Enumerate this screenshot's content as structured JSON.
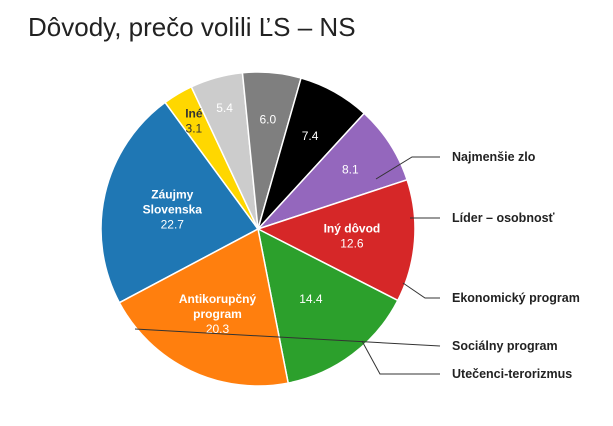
{
  "chart_data": {
    "type": "pie",
    "title": "Dôvody, prečo volili ĽS – NS",
    "slices": [
      {
        "label": "Záujmy Slovenska",
        "display_lines": [
          "Záujmy",
          "Slovenska"
        ],
        "value": 22.7,
        "value_text": "22.7",
        "color": "#1f77b4",
        "label_color": "#ffffff",
        "bold": true,
        "callout": false
      },
      {
        "label": "Iné",
        "display_lines": [
          "Iné"
        ],
        "value": 3.1,
        "value_text": "3.1",
        "color": "#ffd700",
        "label_color": "#333333",
        "bold": true,
        "callout": false
      },
      {
        "label": "Najmenšie zlo",
        "display_lines": [],
        "value": 5.4,
        "value_text": "5.4",
        "color": "#cccccc",
        "label_color": "#ffffff",
        "bold": false,
        "callout": true
      },
      {
        "label": "Líder – osobnosť",
        "display_lines": [],
        "value": 6.0,
        "value_text": "6.0",
        "color": "#7f7f7f",
        "label_color": "#ffffff",
        "bold": false,
        "callout": true
      },
      {
        "label": "Ekonomický program",
        "display_lines": [],
        "value": 7.4,
        "value_text": "7.4",
        "color": "#000000",
        "label_color": "#ffffff",
        "bold": false,
        "callout": true
      },
      {
        "label": "Utečenci-terorizmus",
        "display_lines": [],
        "value": 8.1,
        "value_text": "8.1",
        "color": "#9467bd",
        "label_color": "#ffffff",
        "bold": false,
        "callout": true
      },
      {
        "label": "Iný dôvod",
        "display_lines": [
          "Iný dôvod"
        ],
        "value": 12.6,
        "value_text": "12.6",
        "color": "#d62728",
        "label_color": "#ffffff",
        "bold": true,
        "callout": false
      },
      {
        "label": "Sociálny program",
        "display_lines": [],
        "value": 14.4,
        "value_text": "14.4",
        "color": "#2ca02c",
        "label_color": "#ffffff",
        "bold": false,
        "callout": true
      },
      {
        "label": "Antikorupčný program",
        "display_lines": [
          "Antikorupčný",
          "program"
        ],
        "value": 20.3,
        "value_text": "20.3",
        "color": "#ff7f0e",
        "label_color": "#ffffff",
        "bold": true,
        "callout": false
      }
    ]
  }
}
